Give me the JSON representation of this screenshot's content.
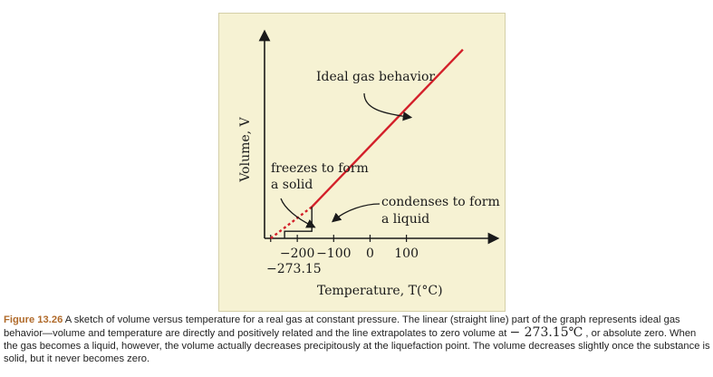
{
  "chart_data": {
    "type": "line",
    "xlabel": "Temperature, T(°C)",
    "ylabel": "Volume, V",
    "x_ticks": [
      -200,
      -100,
      0,
      100
    ],
    "x_tick_labels": [
      "−200",
      "−100",
      "0",
      "100"
    ],
    "extra_x_label": "−273.15",
    "xlim": [
      -290,
      340
    ],
    "ylim": [
      0,
      100
    ],
    "annotations": {
      "ideal": "Ideal gas behavior",
      "freezes_line1": "freezes to form",
      "freezes_line2": "a solid",
      "condenses_line1": "condenses to form",
      "condenses_line2": "a liquid"
    },
    "series": [
      {
        "style": "solid",
        "color": "#d3202a",
        "x": [
          -160,
          255
        ],
        "y": [
          15.5,
          93
        ]
      },
      {
        "style": "dashed",
        "color": "#d3202a",
        "x": [
          -273.15,
          -160
        ],
        "y": [
          0,
          15.5
        ]
      },
      {
        "style": "step",
        "color": "#1a1a1a",
        "x": [
          -235,
          -235,
          -160,
          -160
        ],
        "y": [
          0,
          3.5,
          3.5,
          15.5
        ]
      }
    ]
  },
  "caption": {
    "label": "Figure 13.26",
    "text_before": " A sketch of volume versus temperature for a real gas at constant pressure. The linear (straight line) part of the graph represents ideal gas behavior—volume and temperature are directly and positively related and the line extrapolates to zero volume at ",
    "math": "− 273.15℃",
    "text_after": " , or absolute zero. When the gas becomes a liquid, however, the volume actually decreases precipitously at the liquefaction point. The volume decreases slightly once the substance is solid, but it never becomes zero."
  }
}
